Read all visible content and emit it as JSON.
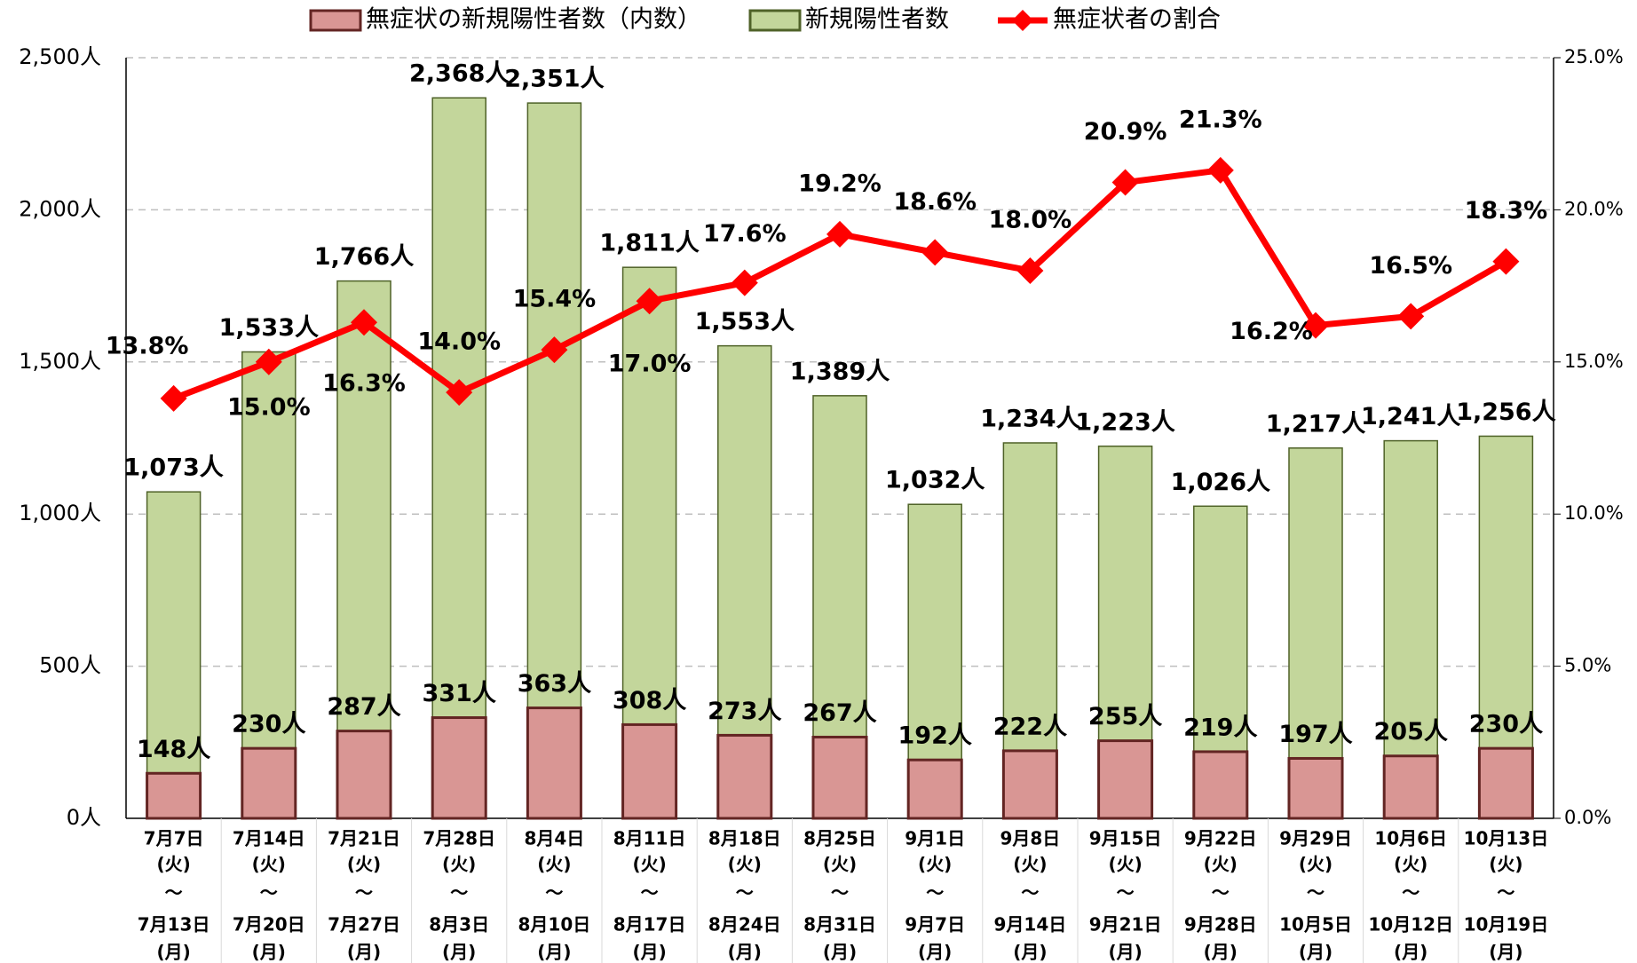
{
  "chart_data": {
    "type": "bar_line",
    "categories": [
      [
        "7月7日",
        "(火)",
        "～",
        "7月13日",
        "(月)"
      ],
      [
        "7月14日",
        "(火)",
        "～",
        "7月20日",
        "(月)"
      ],
      [
        "7月21日",
        "(火)",
        "～",
        "7月27日",
        "(月)"
      ],
      [
        "7月28日",
        "(火)",
        "～",
        "8月3日",
        "(月)"
      ],
      [
        "8月4日",
        "(火)",
        "～",
        "8月10日",
        "(月)"
      ],
      [
        "8月11日",
        "(火)",
        "～",
        "8月17日",
        "(月)"
      ],
      [
        "8月18日",
        "(火)",
        "～",
        "8月24日",
        "(月)"
      ],
      [
        "8月25日",
        "(火)",
        "～",
        "8月31日",
        "(月)"
      ],
      [
        "9月1日",
        "(火)",
        "～",
        "9月7日",
        "(月)"
      ],
      [
        "9月8日",
        "(火)",
        "～",
        "9月14日",
        "(月)"
      ],
      [
        "9月15日",
        "(火)",
        "～",
        "9月21日",
        "(月)"
      ],
      [
        "9月22日",
        "(火)",
        "～",
        "9月28日",
        "(月)"
      ],
      [
        "9月29日",
        "(火)",
        "～",
        "10月5日",
        "(月)"
      ],
      [
        "10月6日",
        "(火)",
        "～",
        "10月12日",
        "(月)"
      ],
      [
        "10月13日",
        "(火)",
        "～",
        "10月19日",
        "(月)"
      ]
    ],
    "series": [
      {
        "name": "無症状の新規陽性者数（内数）",
        "type": "bar",
        "color": "#d99694",
        "edge": "#632523",
        "values": [
          148,
          230,
          287,
          331,
          363,
          308,
          273,
          267,
          192,
          222,
          255,
          219,
          197,
          205,
          230
        ],
        "value_labels": [
          "148人",
          "230人",
          "287人",
          "331人",
          "363人",
          "308人",
          "273人",
          "267人",
          "192人",
          "222人",
          "255人",
          "219人",
          "197人",
          "205人",
          "230人"
        ]
      },
      {
        "name": "新規陽性者数",
        "type": "bar",
        "color": "#c3d69b",
        "edge": "#4f6228",
        "values": [
          1073,
          1533,
          1766,
          2368,
          2351,
          1811,
          1553,
          1389,
          1032,
          1234,
          1223,
          1026,
          1217,
          1241,
          1256
        ],
        "value_labels": [
          "1,073人",
          "1,533人",
          "1,766人",
          "2,368人",
          "2,351人",
          "1,811人",
          "1,553人",
          "1,389人",
          "1,032人",
          "1,234人",
          "1,223人",
          "1,026人",
          "1,217人",
          "1,241人",
          "1,256人"
        ]
      },
      {
        "name": "無症状者の割合",
        "type": "line",
        "axis": "y2",
        "color": "#ff0000",
        "values": [
          13.8,
          15.0,
          16.3,
          14.0,
          15.4,
          17.0,
          17.6,
          19.2,
          18.6,
          18.0,
          20.9,
          21.3,
          16.2,
          16.5,
          18.3
        ],
        "value_labels": [
          "13.8%",
          "15.0%",
          "16.3%",
          "14.0%",
          "15.4%",
          "17.0%",
          "17.6%",
          "19.2%",
          "18.6%",
          "18.0%",
          "20.9%",
          "21.3%",
          "16.2%",
          "16.5%",
          "18.3%"
        ]
      }
    ],
    "ylim": [
      0,
      2500
    ],
    "yticks": [
      {
        "value": 0,
        "label": "0人"
      },
      {
        "value": 500,
        "label": "500人"
      },
      {
        "value": 1000,
        "label": "1,000人"
      },
      {
        "value": 1500,
        "label": "1,500人"
      },
      {
        "value": 2000,
        "label": "2,000人"
      },
      {
        "value": 2500,
        "label": "2,500人"
      }
    ],
    "y2lim": [
      0,
      25
    ],
    "y2ticks": [
      {
        "value": 0,
        "label": "0.0%"
      },
      {
        "value": 5,
        "label": "5.0%"
      },
      {
        "value": 10,
        "label": "10.0%"
      },
      {
        "value": 15,
        "label": "15.0%"
      },
      {
        "value": 20,
        "label": "20.0%"
      },
      {
        "value": 25,
        "label": "25.0%"
      }
    ],
    "grid": true,
    "legend": "top"
  }
}
